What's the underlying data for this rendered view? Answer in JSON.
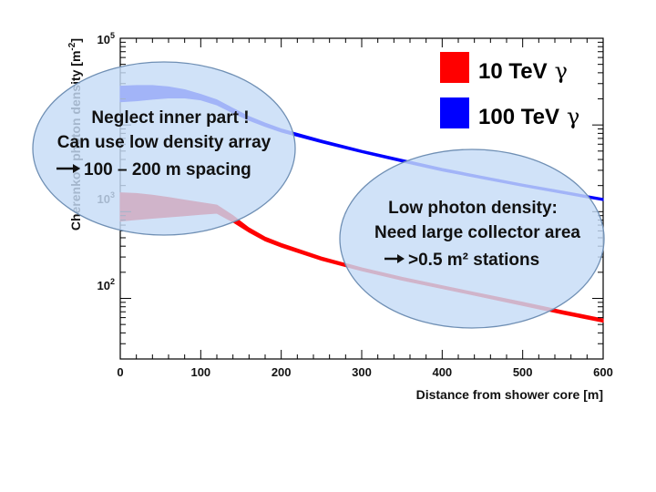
{
  "chart_data": {
    "type": "area",
    "title": "",
    "xlabel": "Distance from shower core [m]",
    "ylabel": "Cherenkov photon density [m^-2]",
    "ylabel_main": "Cherenkov photon density [m",
    "ylabel_exp": "-2",
    "ylabel_close": "]",
    "xscale": "linear",
    "yscale": "log",
    "xlim": [
      0,
      600
    ],
    "ylim": [
      20,
      100000
    ],
    "x_ticks": [
      0,
      100,
      200,
      300,
      400,
      500,
      600
    ],
    "x_tick_labels": [
      "0",
      "100",
      "200",
      "300",
      "400",
      "500",
      "600"
    ],
    "y_tick_labels": [
      {
        "value": 100,
        "base": "10",
        "exp": "2"
      },
      {
        "value": 1000,
        "base": "10",
        "exp": "3"
      },
      {
        "value": 100000,
        "base": "10",
        "exp": "5"
      }
    ],
    "legend_position": "top-right",
    "series": [
      {
        "name": "10 TeV γ",
        "legend_text": "10 TeV",
        "legend_symbol": "γ",
        "color": "#ff0000",
        "x": [
          0,
          20,
          40,
          60,
          80,
          100,
          120,
          140,
          160,
          180,
          200,
          250,
          300,
          350,
          400,
          450,
          500,
          550,
          600
        ],
        "upper": [
          1650,
          1620,
          1550,
          1460,
          1360,
          1270,
          1190,
          900,
          650,
          510,
          430,
          300,
          225,
          175,
          140,
          112,
          90,
          72,
          58
        ],
        "lower": [
          780,
          810,
          840,
          870,
          900,
          930,
          960,
          760,
          580,
          460,
          390,
          275,
          208,
          162,
          130,
          104,
          83,
          66,
          53
        ]
      },
      {
        "name": "100 TeV γ",
        "legend_text": "100 TeV",
        "legend_symbol": "γ",
        "color": "#0000ff",
        "x": [
          0,
          20,
          40,
          60,
          80,
          100,
          120,
          140,
          160,
          180,
          200,
          250,
          300,
          350,
          400,
          450,
          500,
          550,
          600
        ],
        "upper": [
          28000,
          28500,
          28500,
          27500,
          25500,
          22500,
          19500,
          15500,
          12500,
          10500,
          9000,
          6700,
          5100,
          4000,
          3150,
          2550,
          2080,
          1720,
          1420
        ],
        "lower": [
          18500,
          19000,
          19800,
          20500,
          20500,
          19500,
          17000,
          13800,
          11300,
          9600,
          8300,
          6250,
          4800,
          3750,
          2950,
          2400,
          1960,
          1620,
          1340
        ]
      }
    ],
    "annotations": [
      {
        "lines": [
          "Neglect inner part !",
          "Can use low density array",
          "100 – 200 m spacing"
        ],
        "arrow_line": 2
      },
      {
        "lines": [
          "Low photon density:",
          "Need large collector area",
          ">0.5 m² stations"
        ],
        "arrow_line": 2
      }
    ],
    "colors": {
      "ellipse_fill": "#c6dcf6",
      "ellipse_stroke": "#6f8fb4"
    }
  }
}
